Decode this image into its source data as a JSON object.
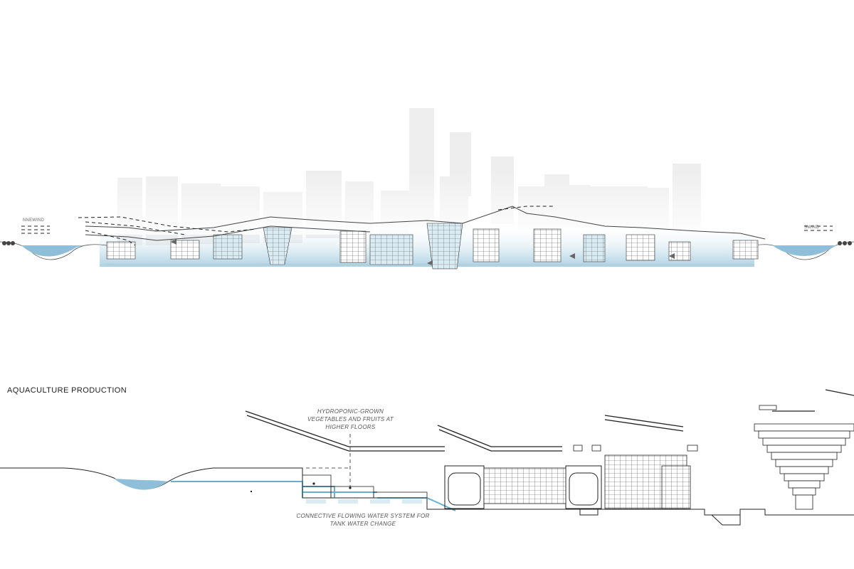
{
  "top_section": {
    "wind_left": "NNEWIND",
    "wind_right": "SWIND"
  },
  "bottom_section": {
    "title": "AQUACULTURE PRODUCTION",
    "annotation_hydroponic": [
      "HYDROPONIC-GROWN",
      "VEGETABLES AND FRUITS AT",
      "HIGHER FLOORS"
    ],
    "annotation_water": [
      "CONNECTIVE FLOWING WATER SYSTEM FOR",
      "TANK WATER CHANGE"
    ]
  },
  "colors": {
    "water": "#8fbfd8",
    "water_light": "#cfe5f0",
    "line": "#333333",
    "flow_line": "#6aaed0",
    "tower": "#eeeeee"
  }
}
